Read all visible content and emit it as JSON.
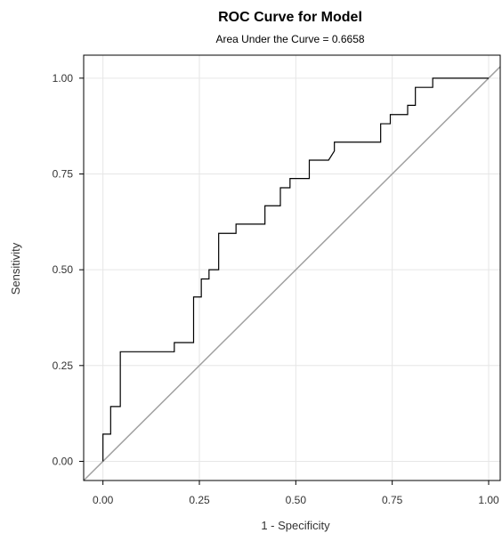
{
  "chart_data": {
    "type": "line",
    "title": "ROC Curve for Model",
    "subtitle": "Area Under the Curve = 0.6658",
    "xlabel": "1 - Specificity",
    "ylabel": "Sensitivity",
    "xlim": [
      -0.05,
      1.03
    ],
    "ylim": [
      -0.05,
      1.06
    ],
    "x_ticks": [
      "0.00",
      "0.25",
      "0.50",
      "0.75",
      "1.00"
    ],
    "y_ticks": [
      "0.00",
      "0.25",
      "0.50",
      "0.75",
      "1.00"
    ],
    "grid": true,
    "colors": {
      "roc": "#000000",
      "diagonal": "#a0a0a0",
      "grid": "#e6e6e6",
      "frame": "#000000"
    },
    "series": [
      {
        "values": [
          [
            0.0,
            0.0
          ],
          [
            0.0,
            0.071
          ],
          [
            0.02,
            0.071
          ],
          [
            0.02,
            0.143
          ],
          [
            0.045,
            0.143
          ],
          [
            0.045,
            0.286
          ],
          [
            0.185,
            0.286
          ],
          [
            0.185,
            0.31
          ],
          [
            0.235,
            0.31
          ],
          [
            0.235,
            0.429
          ],
          [
            0.255,
            0.429
          ],
          [
            0.255,
            0.476
          ],
          [
            0.275,
            0.476
          ],
          [
            0.275,
            0.5
          ],
          [
            0.3,
            0.5
          ],
          [
            0.3,
            0.595
          ],
          [
            0.345,
            0.595
          ],
          [
            0.345,
            0.619
          ],
          [
            0.42,
            0.619
          ],
          [
            0.42,
            0.667
          ],
          [
            0.46,
            0.667
          ],
          [
            0.46,
            0.714
          ],
          [
            0.485,
            0.714
          ],
          [
            0.485,
            0.738
          ],
          [
            0.535,
            0.738
          ],
          [
            0.535,
            0.786
          ],
          [
            0.585,
            0.786
          ],
          [
            0.6,
            0.81
          ],
          [
            0.6,
            0.833
          ],
          [
            0.72,
            0.833
          ],
          [
            0.72,
            0.881
          ],
          [
            0.745,
            0.881
          ],
          [
            0.745,
            0.905
          ],
          [
            0.79,
            0.905
          ],
          [
            0.79,
            0.929
          ],
          [
            0.81,
            0.929
          ],
          [
            0.81,
            0.976
          ],
          [
            0.855,
            0.976
          ],
          [
            0.855,
            1.0
          ],
          [
            1.0,
            1.0
          ]
        ]
      },
      {
        "values": [
          [
            -0.05,
            -0.05
          ],
          [
            1.03,
            1.03
          ]
        ]
      }
    ]
  }
}
